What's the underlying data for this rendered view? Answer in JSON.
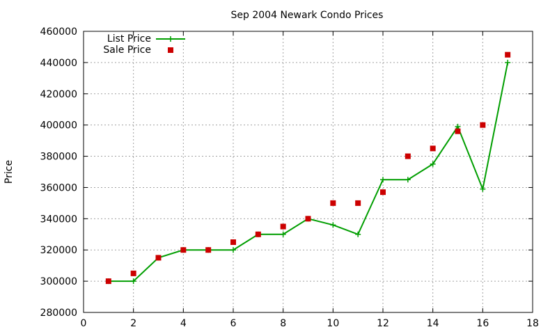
{
  "colors": {
    "list": "#009e00",
    "sale": "#cc0000"
  },
  "chart_data": {
    "type": "line",
    "title": "Sep 2004 Newark Condo Prices",
    "xlabel": "",
    "ylabel": "Price",
    "xlim": [
      0,
      18
    ],
    "ylim": [
      280000,
      460000
    ],
    "xticks": [
      0,
      2,
      4,
      6,
      8,
      10,
      12,
      14,
      16,
      18
    ],
    "yticks": [
      280000,
      300000,
      320000,
      340000,
      360000,
      380000,
      400000,
      420000,
      440000,
      460000
    ],
    "grid": true,
    "legend": "top-left",
    "x": [
      1,
      2,
      3,
      4,
      5,
      6,
      7,
      8,
      9,
      10,
      11,
      12,
      13,
      14,
      15,
      16,
      17
    ],
    "series": [
      {
        "name": "List Price",
        "style": "line+cross",
        "values": [
          300000,
          300000,
          315000,
          320000,
          320000,
          320000,
          330000,
          330000,
          340000,
          336000,
          330000,
          365000,
          365000,
          375000,
          399000,
          359000,
          440000
        ]
      },
      {
        "name": "Sale Price",
        "style": "square",
        "values": [
          300000,
          305000,
          315000,
          320000,
          320000,
          325000,
          330000,
          335000,
          340000,
          350000,
          350000,
          357000,
          380000,
          385000,
          396000,
          400000,
          445000
        ]
      }
    ]
  }
}
